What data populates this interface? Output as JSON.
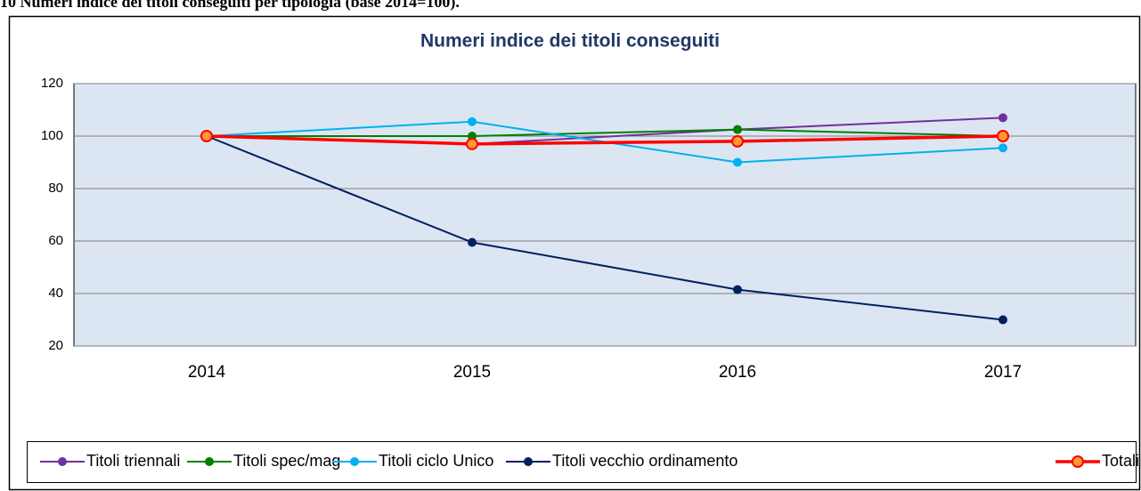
{
  "caption": "10 Numeri indice dei titoli conseguiti per tipologia (base 2014=100).",
  "chart_data": {
    "type": "line",
    "title": "Numeri indice dei titoli conseguiti",
    "categories": [
      "2014",
      "2015",
      "2016",
      "2017"
    ],
    "series": [
      {
        "name": "Titoli triennali",
        "color": "#7030a0",
        "values": [
          100,
          97,
          102.5,
          107
        ]
      },
      {
        "name": "Titoli spec/mag",
        "color": "#008000",
        "values": [
          100,
          100,
          102.5,
          100
        ]
      },
      {
        "name": "Titoli ciclo Unico",
        "color": "#00b0f0",
        "values": [
          100,
          105.5,
          90,
          95.5
        ]
      },
      {
        "name": "Titoli vecchio ordinamento",
        "color": "#002060",
        "values": [
          100,
          59.5,
          41.5,
          30
        ]
      },
      {
        "name": "Totali",
        "color": "#ff0000",
        "marker_color": "#ff9933",
        "values": [
          100,
          97,
          98,
          100
        ]
      }
    ],
    "ylim": [
      20,
      120
    ],
    "yticks": [
      20,
      40,
      60,
      80,
      100,
      120
    ],
    "grid": true,
    "legend": "bottom"
  }
}
